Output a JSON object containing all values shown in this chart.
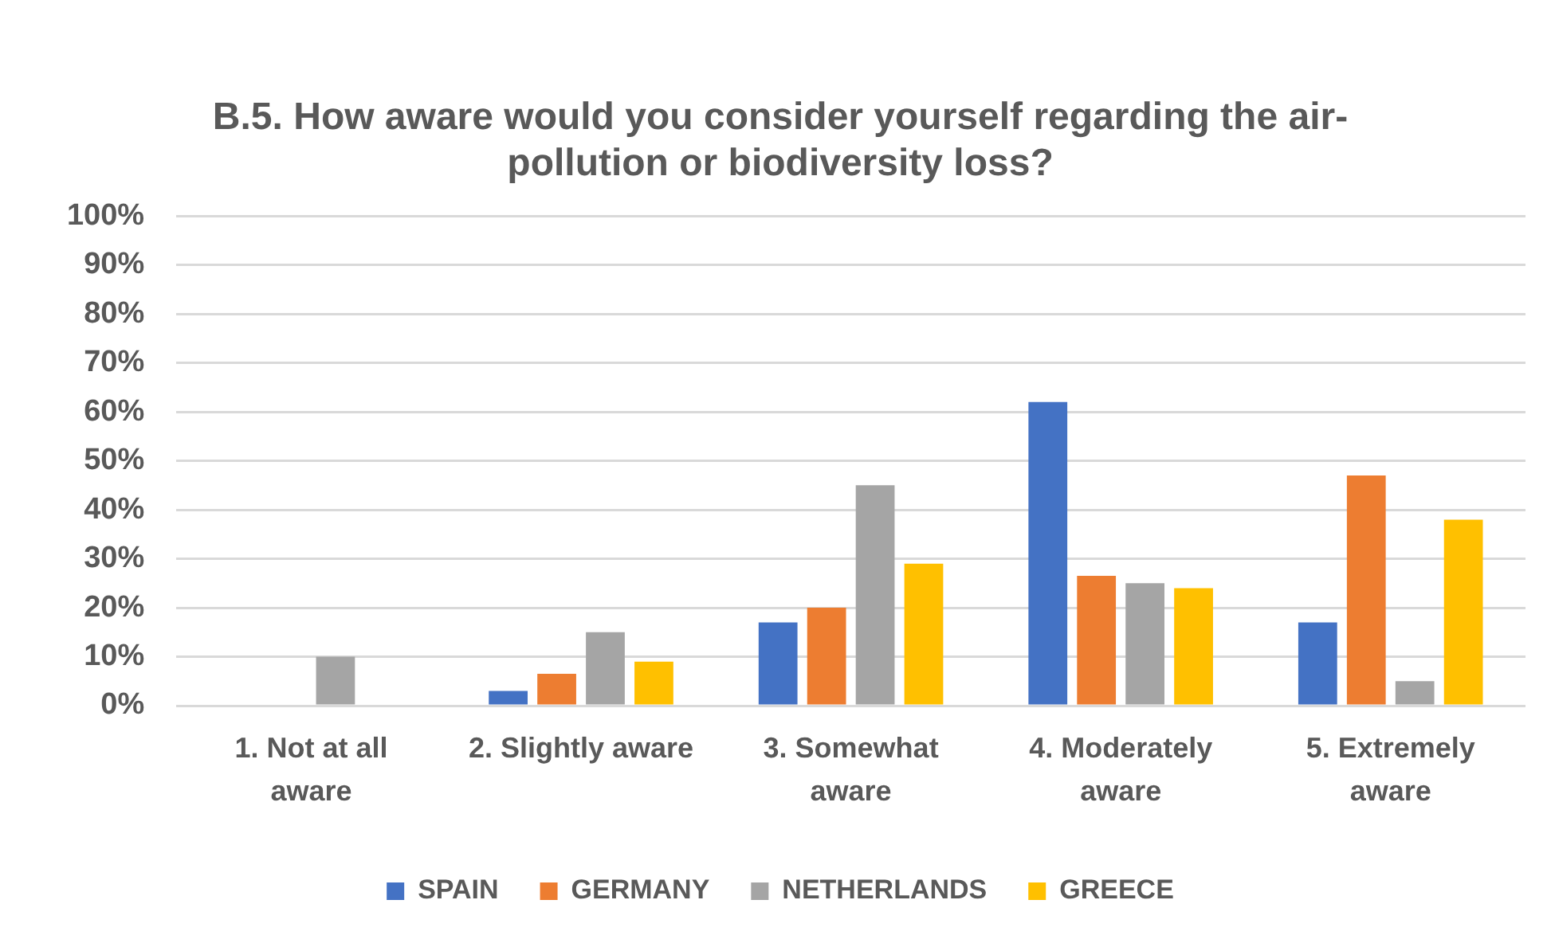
{
  "chart_data": {
    "type": "bar",
    "title": "B.5. How aware would you consider yourself regarding the air-pollution or biodiversity loss?",
    "categories": [
      "1. Not at all aware",
      "2. Slightly aware",
      "3. Somewhat aware",
      "4. Moderately aware",
      "5. Extremely aware"
    ],
    "series": [
      {
        "name": "SPAIN",
        "color": "#4472c4",
        "values": [
          0,
          3,
          17,
          62,
          17
        ]
      },
      {
        "name": "GERMANY",
        "color": "#ed7d31",
        "values": [
          0,
          6.5,
          20,
          26.5,
          47
        ]
      },
      {
        "name": "NETHERLANDS",
        "color": "#a5a5a5",
        "values": [
          10,
          15,
          45,
          25,
          5
        ]
      },
      {
        "name": "GREECE",
        "color": "#ffc000",
        "values": [
          0,
          9,
          29,
          24,
          38
        ]
      }
    ],
    "ylim": [
      0,
      100
    ],
    "yticks": [
      {
        "value": 0,
        "label": "0%"
      },
      {
        "value": 10,
        "label": "10%"
      },
      {
        "value": 20,
        "label": "20%"
      },
      {
        "value": 30,
        "label": "30%"
      },
      {
        "value": 40,
        "label": "40%"
      },
      {
        "value": 50,
        "label": "50%"
      },
      {
        "value": 60,
        "label": "60%"
      },
      {
        "value": 70,
        "label": "70%"
      },
      {
        "value": 80,
        "label": "80%"
      },
      {
        "value": 90,
        "label": "90%"
      },
      {
        "value": 100,
        "label": "100%"
      }
    ],
    "grid": "y",
    "legend": "bottom"
  }
}
